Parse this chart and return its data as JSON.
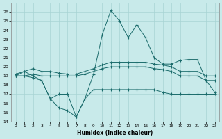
{
  "xlabel": "Humidex (Indice chaleur)",
  "bg_color": "#c8eaea",
  "line_color": "#1a6b6b",
  "grid_color": "#a8d4d4",
  "xlim": [
    -0.5,
    23.5
  ],
  "ylim": [
    14,
    27
  ],
  "yticks": [
    14,
    15,
    16,
    17,
    18,
    19,
    20,
    21,
    22,
    23,
    24,
    25,
    26
  ],
  "xticks": [
    0,
    1,
    2,
    3,
    4,
    5,
    6,
    7,
    8,
    9,
    10,
    11,
    12,
    13,
    14,
    15,
    16,
    17,
    18,
    19,
    20,
    21,
    22,
    23
  ],
  "lines": [
    {
      "x": [
        0,
        1,
        2,
        3,
        4,
        5,
        6,
        7,
        8,
        9,
        10,
        11,
        12,
        13,
        14,
        15,
        16,
        17,
        18,
        19,
        20,
        21,
        22,
        23
      ],
      "y": [
        19,
        19.5,
        19,
        18.5,
        16.5,
        15.5,
        15.2,
        14.5,
        16.5,
        19.2,
        23.5,
        26.2,
        25.0,
        23.2,
        24.6,
        23.2,
        21.0,
        20.3,
        20.3,
        20.7,
        20.8,
        20.8,
        18.5,
        17.2
      ]
    },
    {
      "x": [
        0,
        1,
        2,
        3,
        4,
        5,
        6,
        7,
        8,
        9,
        10,
        11,
        12,
        13,
        14,
        15,
        16,
        17,
        18,
        19,
        20,
        21,
        22,
        23
      ],
      "y": [
        19.0,
        19.0,
        18.8,
        18.5,
        16.5,
        17.0,
        17.0,
        14.5,
        16.5,
        17.5,
        17.5,
        17.5,
        17.5,
        17.5,
        17.5,
        17.5,
        17.5,
        17.2,
        17.0,
        17.0,
        17.0,
        17.0,
        17.0,
        17.0
      ]
    },
    {
      "x": [
        0,
        1,
        2,
        3,
        4,
        5,
        6,
        7,
        8,
        9,
        10,
        11,
        12,
        13,
        14,
        15,
        16,
        17,
        18,
        19,
        20,
        21,
        22,
        23
      ],
      "y": [
        19.2,
        19.5,
        19.8,
        19.5,
        19.5,
        19.3,
        19.2,
        19.2,
        19.5,
        19.8,
        20.2,
        20.5,
        20.5,
        20.5,
        20.5,
        20.5,
        20.3,
        20.2,
        20.0,
        19.5,
        19.5,
        19.5,
        19.0,
        19.0
      ]
    },
    {
      "x": [
        0,
        1,
        2,
        3,
        4,
        5,
        6,
        7,
        8,
        9,
        10,
        11,
        12,
        13,
        14,
        15,
        16,
        17,
        18,
        19,
        20,
        21,
        22,
        23
      ],
      "y": [
        19.0,
        19.0,
        19.2,
        19.0,
        19.0,
        19.0,
        19.0,
        19.0,
        19.2,
        19.5,
        19.8,
        20.0,
        20.0,
        20.0,
        20.0,
        20.0,
        19.8,
        19.7,
        19.5,
        19.0,
        19.0,
        19.0,
        18.5,
        18.5
      ]
    }
  ]
}
